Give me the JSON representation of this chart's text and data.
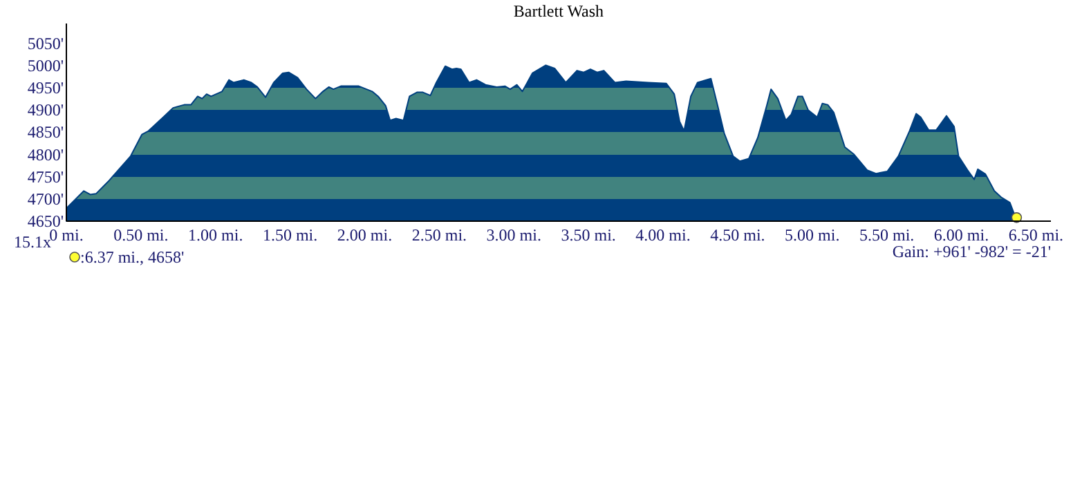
{
  "chart_data": {
    "type": "area",
    "title": "Bartlett Wash",
    "series": [
      {
        "color": "#003f7f",
        "x": [
          0,
          0.117,
          0.16,
          0.2,
          0.28,
          0.43,
          0.506,
          0.55,
          0.64,
          0.715,
          0.79,
          0.835,
          0.88,
          0.91,
          0.94,
          0.97,
          1.044,
          1.09,
          1.12,
          1.19,
          1.24,
          1.28,
          1.335,
          1.39,
          1.45,
          1.49,
          1.55,
          1.61,
          1.67,
          1.72,
          1.76,
          1.79,
          1.84,
          1.96,
          2.05,
          2.09,
          2.14,
          2.17,
          2.21,
          2.26,
          2.3,
          2.35,
          2.39,
          2.44,
          2.48,
          2.54,
          2.585,
          2.615,
          2.645,
          2.7,
          2.75,
          2.81,
          2.885,
          2.94,
          2.975,
          3.02,
          3.057,
          3.124,
          3.214,
          3.273,
          3.348,
          3.423,
          3.468,
          3.513,
          3.558,
          3.603,
          3.677,
          3.752,
          3.901,
          4.022,
          4.075,
          4.111,
          4.141,
          4.186,
          4.231,
          4.321,
          4.366,
          4.41,
          4.47,
          4.515,
          4.575,
          4.635,
          4.695,
          4.724,
          4.769,
          4.823,
          4.859,
          4.904,
          4.934,
          4.973,
          5.033,
          5.068,
          5.104,
          5.144,
          5.218,
          5.278,
          5.368,
          5.427,
          5.503,
          5.577,
          5.652,
          5.697,
          5.727,
          5.781,
          5.831,
          5.9,
          5.951,
          5.981,
          6.041,
          6.086,
          6.11,
          6.161,
          6.221,
          6.266,
          6.325,
          6.361,
          6.37
        ],
        "values": [
          4679,
          4718,
          4710,
          4712,
          4739,
          4796,
          4845,
          4853,
          4881,
          4905,
          4912,
          4912,
          4931,
          4926,
          4936,
          4931,
          4942,
          4968,
          4962,
          4968,
          4962,
          4952,
          4929,
          4962,
          4983,
          4985,
          4973,
          4947,
          4926,
          4942,
          4952,
          4947,
          4954,
          4954,
          4942,
          4931,
          4910,
          4877,
          4881,
          4877,
          4931,
          4940,
          4940,
          4933,
          4962,
          4999,
          4992,
          4994,
          4992,
          4962,
          4968,
          4957,
          4952,
          4954,
          4947,
          4957,
          4942,
          4983,
          5001,
          4994,
          4962,
          4989,
          4985,
          4992,
          4985,
          4989,
          4962,
          4965,
          4962,
          4960,
          4936,
          4874,
          4853,
          4931,
          4962,
          4971,
          4910,
          4848,
          4796,
          4785,
          4791,
          4838,
          4910,
          4947,
          4926,
          4877,
          4890,
          4931,
          4931,
          4900,
          4884,
          4915,
          4912,
          4895,
          4817,
          4801,
          4765,
          4757,
          4762,
          4796,
          4853,
          4892,
          4884,
          4855,
          4855,
          4887,
          4863,
          4796,
          4765,
          4744,
          4767,
          4756,
          4718,
          4704,
          4692,
          4660,
          4658
        ]
      }
    ],
    "xlim": [
      0,
      6.6
    ],
    "ylim": [
      4650,
      5095
    ],
    "xticks": [
      {
        "value": 0,
        "label": "0 mi."
      },
      {
        "value": 0.5,
        "label": "0.50 mi."
      },
      {
        "value": 1,
        "label": "1.00 mi."
      },
      {
        "value": 1.5,
        "label": "1.50 mi."
      },
      {
        "value": 2,
        "label": "2.00 mi."
      },
      {
        "value": 2.5,
        "label": "2.50 mi."
      },
      {
        "value": 3,
        "label": "3.00 mi."
      },
      {
        "value": 3.5,
        "label": "3.50 mi."
      },
      {
        "value": 4,
        "label": "4.00 mi."
      },
      {
        "value": 4.5,
        "label": "4.50 mi."
      },
      {
        "value": 5,
        "label": "5.00 mi."
      },
      {
        "value": 5.5,
        "label": "5.50 mi."
      },
      {
        "value": 6,
        "label": "6.00 mi."
      },
      {
        "value": 6.5,
        "label": "6.50 mi."
      }
    ],
    "yticks": [
      {
        "value": 4650,
        "label": "4650'"
      },
      {
        "value": 4700,
        "label": "4700'"
      },
      {
        "value": 4750,
        "label": "4750'"
      },
      {
        "value": 4800,
        "label": "4800'"
      },
      {
        "value": 4850,
        "label": "4850'"
      },
      {
        "value": 4900,
        "label": "4900'"
      },
      {
        "value": 4950,
        "label": "4950'"
      },
      {
        "value": 5000,
        "label": "5000'"
      },
      {
        "value": 5050,
        "label": "5050'"
      }
    ],
    "annotations": [
      "15.1x",
      ":6.37 mi., 4658'",
      "Gain: +961' -982' = -21'"
    ],
    "grid": false
  }
}
